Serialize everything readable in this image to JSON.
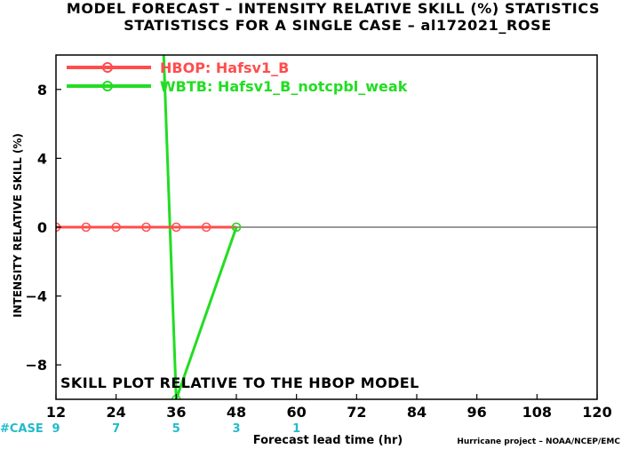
{
  "chart_data": {
    "type": "line",
    "title": "MODEL FORECAST – INTENSITY RELATIVE SKILL (%) STATISTICS",
    "subtitle": "STATISTISCS FOR A SINGLE CASE – al172021_ROSE",
    "xlabel": "Forecast lead time (hr)",
    "ylabel": "INTENSITY RELATIVE SKILL (%)",
    "xlim": [
      12,
      120
    ],
    "ylim": [
      -10,
      10
    ],
    "x_ticks": [
      12,
      24,
      36,
      48,
      60,
      72,
      84,
      96,
      108,
      120
    ],
    "y_ticks": [
      -8,
      -4,
      0,
      4,
      8
    ],
    "annotation": "SKILL PLOT RELATIVE TO THE HBOP MODEL",
    "credit": "Hurricane project – NOAA/NCEP/EMC",
    "case_label": "#CASE",
    "cases": [
      {
        "x": 12,
        "label": "9"
      },
      {
        "x": 24,
        "label": "7"
      },
      {
        "x": 36,
        "label": "5"
      },
      {
        "x": 48,
        "label": "3"
      },
      {
        "x": 60,
        "label": "1"
      }
    ],
    "series": [
      {
        "name": "HBOP: Hafsv1_B",
        "color": "#ff4d4d",
        "x": [
          12,
          18,
          24,
          30,
          36,
          42,
          48
        ],
        "values": [
          0,
          0,
          0,
          0,
          0,
          0,
          0
        ]
      },
      {
        "name": "WBTB: Hafsv1_B_notcpbl_weak",
        "color": "#22dd22",
        "x": [
          36,
          48
        ],
        "values": [
          -10,
          0
        ]
      }
    ],
    "extra_line": {
      "color": "#22dd22",
      "x": [
        33.5,
        36
      ],
      "values": [
        10,
        -10
      ]
    },
    "legend_position": "top-left",
    "grid": false,
    "zero_line": true,
    "case_color": "#22bbcc"
  }
}
